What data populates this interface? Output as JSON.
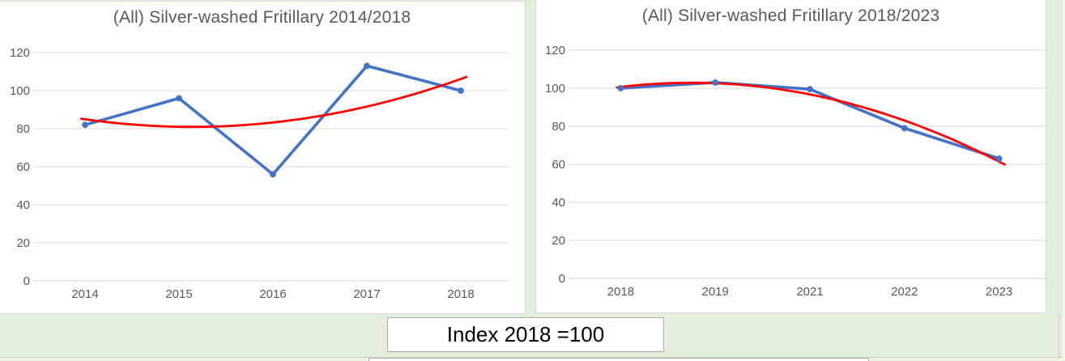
{
  "workbook": {
    "background_color": "#e3eedd",
    "lower_band_color": "#edf4e6",
    "panel_border_color": "#d9d9d9"
  },
  "index_label": {
    "text": "Index 2018 =100"
  },
  "chart_data": [
    {
      "type": "line",
      "title": "(All) Silver-washed Fritillary 2014/2018",
      "categories": [
        "2014",
        "2015",
        "2016",
        "2017",
        "2018"
      ],
      "series": [
        {
          "name": "Index",
          "color": "#4472c4",
          "marker": "circle",
          "values": [
            82,
            96,
            56,
            113,
            100
          ]
        }
      ],
      "trendline": {
        "type": "polynomial",
        "order": 2,
        "color": "#ff0000"
      },
      "ylim": [
        0,
        120
      ],
      "yticks": [
        0,
        20,
        40,
        60,
        80,
        100,
        120
      ],
      "grid": true,
      "legend": "none",
      "axis_label_color": "#595959",
      "gridline_color": "#d9d9d9"
    },
    {
      "type": "line",
      "title": "(All) Silver-washed Fritillary 2018/2023",
      "categories": [
        "2018",
        "2019",
        "2021",
        "2022",
        "2023"
      ],
      "series": [
        {
          "name": "Index",
          "color": "#4472c4",
          "marker": "circle",
          "values": [
            100,
            103,
            99.5,
            79,
            63
          ]
        }
      ],
      "trendline": {
        "type": "polynomial",
        "order": 2,
        "color": "#ff0000"
      },
      "ylim": [
        0,
        120
      ],
      "yticks": [
        0,
        20,
        40,
        60,
        80,
        100,
        120
      ],
      "grid": true,
      "legend": "none",
      "axis_label_color": "#595959",
      "gridline_color": "#d9d9d9"
    }
  ]
}
